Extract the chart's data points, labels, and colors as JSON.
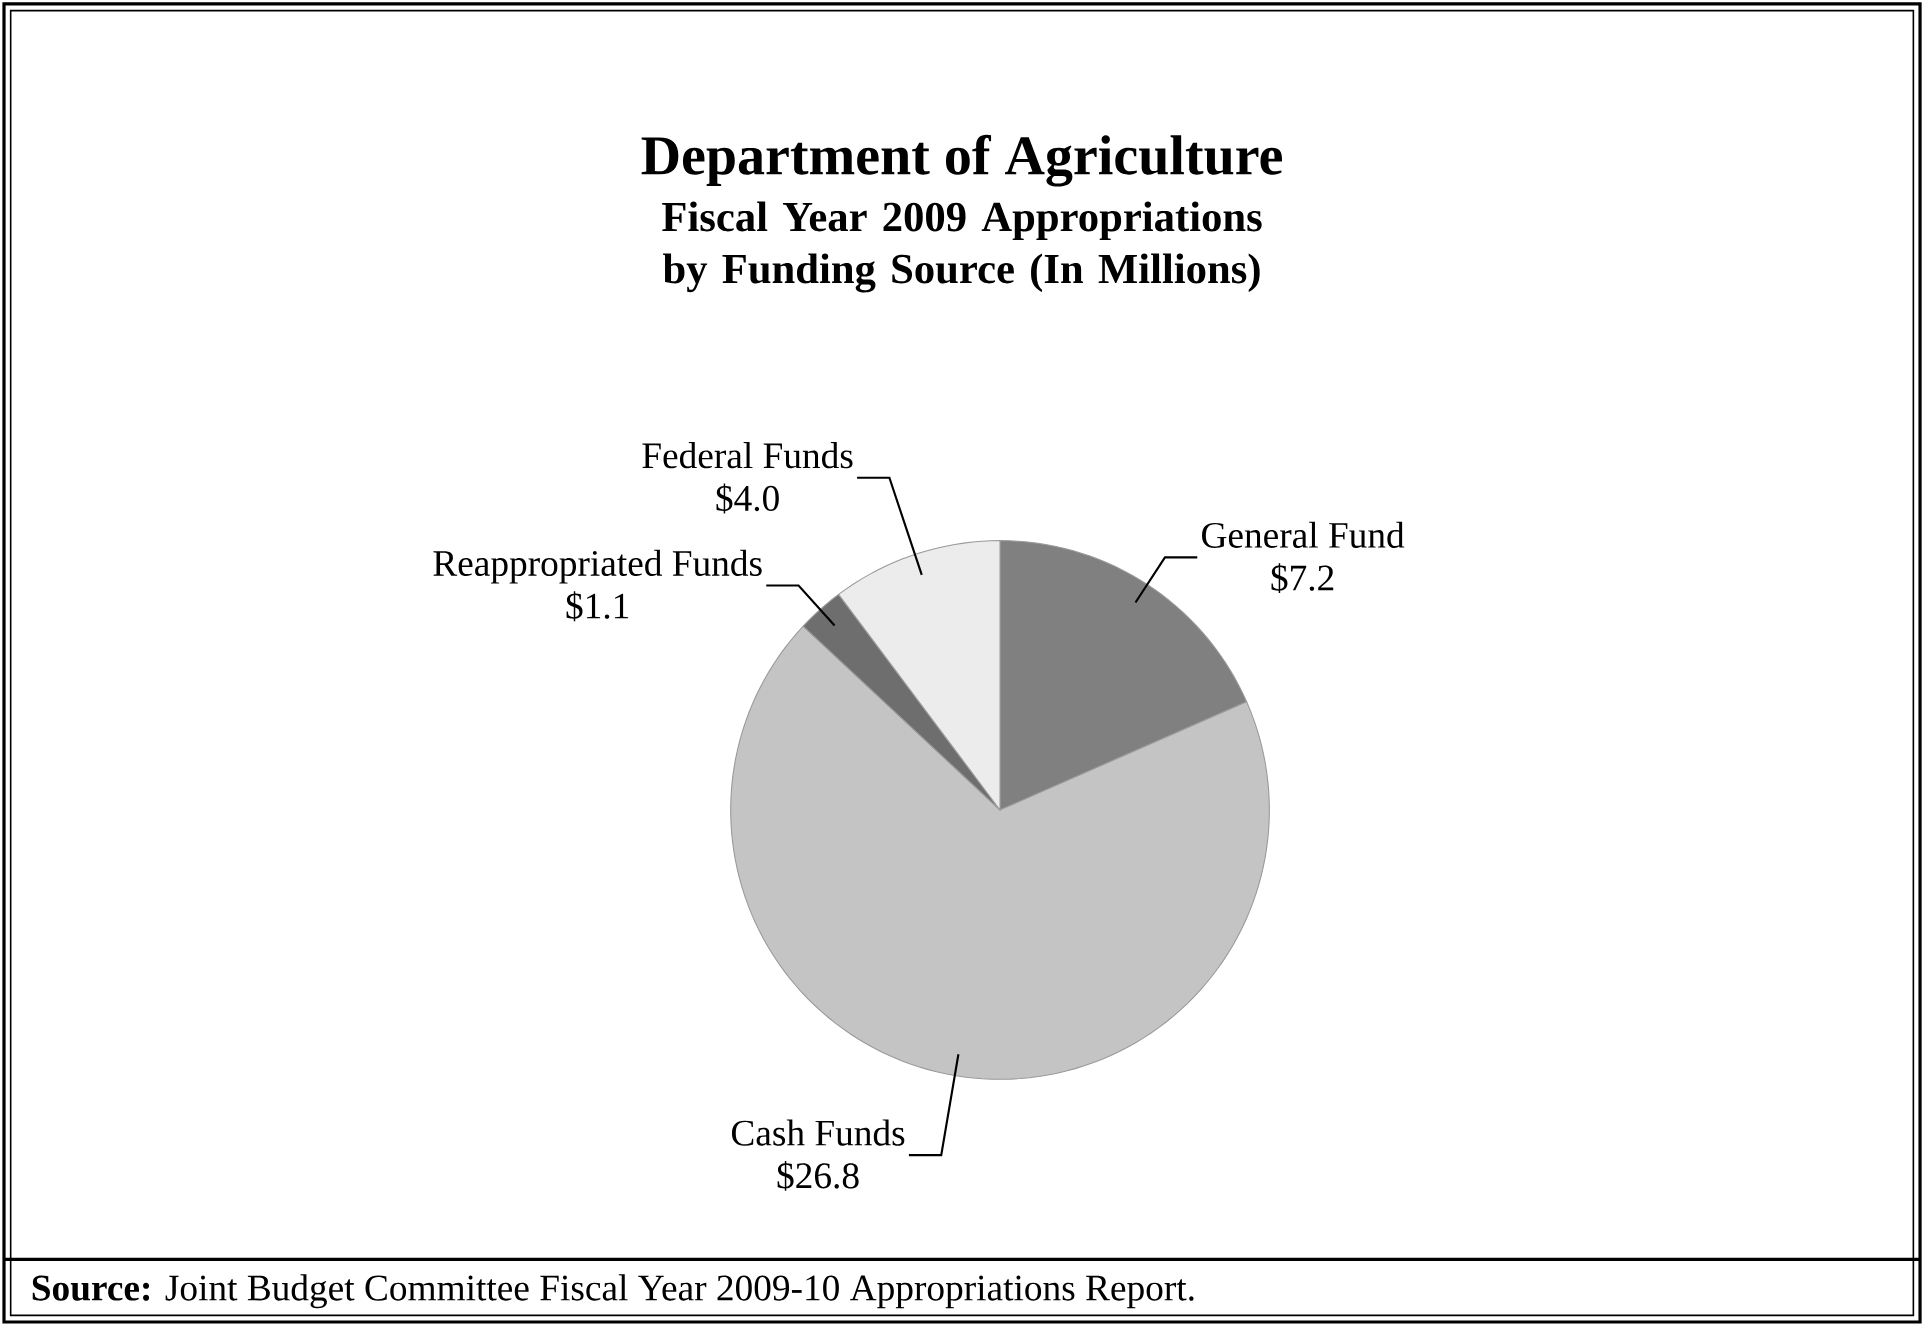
{
  "chart_data": {
    "type": "pie",
    "title": "Department of Agriculture",
    "subtitle": "Fiscal Year 2009 Appropriations by Funding Source (In Millions)",
    "categories": [
      "General Fund",
      "Cash Funds",
      "Reappropriated Funds",
      "Federal Funds"
    ],
    "values": [
      7.2,
      26.8,
      1.1,
      4.0
    ],
    "value_labels": [
      "$7.2",
      "$26.8",
      "$1.1",
      "$4.0"
    ],
    "colors": [
      "#808080",
      "#c4c4c4",
      "#6e6e6e",
      "#ececec"
    ],
    "annotations": [
      "**Source:** Joint Budget Committee Fiscal Year 2009-10 Appropriations Report."
    ]
  }
}
